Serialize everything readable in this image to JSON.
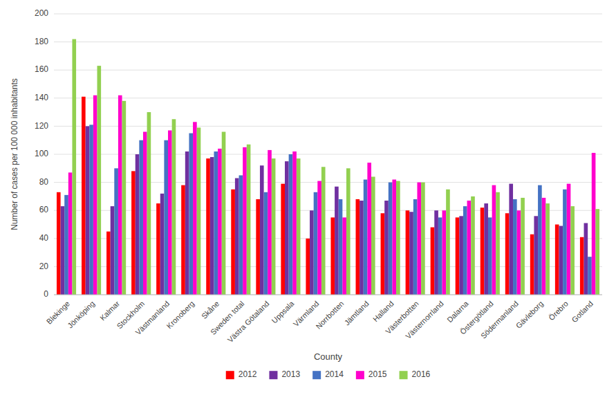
{
  "chart_data": {
    "type": "bar",
    "xlabel": "County",
    "ylabel": "Number of cases per 100 000 inhabitants",
    "categories": [
      "Blekinge",
      "Jönköping",
      "Kalmar",
      "Stockholm",
      "Västmanland",
      "Kronoberg",
      "Skåne",
      "Sweden total",
      "Västra Götaland",
      "Uppsala",
      "Värmland",
      "Norrbotten",
      "Jämtland",
      "Halland",
      "Västerbotten",
      "Västernorrland",
      "Dalarna",
      "Östergötland",
      "Södermanland",
      "Gävleborg",
      "Örebro",
      "Gotland"
    ],
    "series": [
      {
        "name": "2012",
        "color": "#FF0000",
        "values": [
          73,
          141,
          45,
          88,
          65,
          78,
          97,
          75,
          68,
          79,
          40,
          55,
          68,
          58,
          60,
          48,
          55,
          62,
          58,
          43,
          50,
          41
        ]
      },
      {
        "name": "2013",
        "color": "#7030A0",
        "values": [
          63,
          120,
          63,
          100,
          72,
          102,
          98,
          83,
          92,
          95,
          60,
          77,
          67,
          67,
          59,
          60,
          56,
          65,
          79,
          56,
          49,
          51
        ]
      },
      {
        "name": "2014",
        "color": "#4472C4",
        "values": [
          71,
          121,
          90,
          110,
          110,
          115,
          102,
          85,
          73,
          100,
          73,
          68,
          82,
          80,
          68,
          55,
          63,
          55,
          68,
          78,
          75,
          27
        ]
      },
      {
        "name": "2015",
        "color": "#FF00CC",
        "values": [
          87,
          142,
          142,
          116,
          117,
          123,
          104,
          105,
          103,
          102,
          81,
          55,
          94,
          82,
          80,
          60,
          67,
          78,
          60,
          69,
          79,
          101
        ]
      },
      {
        "name": "2016",
        "color": "#92D050",
        "values": [
          182,
          163,
          138,
          130,
          125,
          119,
          116,
          107,
          97,
          97,
          91,
          90,
          84,
          81,
          80,
          75,
          70,
          73,
          69,
          65,
          63,
          61
        ]
      }
    ],
    "ylim": [
      0,
      200
    ],
    "yticks": [
      0,
      20,
      40,
      60,
      80,
      100,
      120,
      140,
      160,
      180,
      200
    ],
    "grid": true,
    "legend": "bottom"
  }
}
